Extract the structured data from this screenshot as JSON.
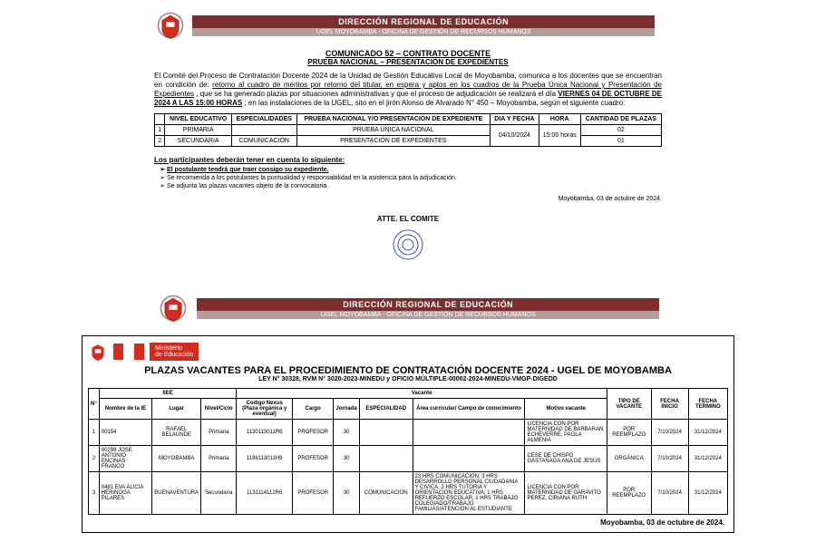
{
  "doc1": {
    "band_dark": "DIRECCIÓN REGIONAL DE EDUCACIÓN",
    "band_light": "UGEL MOYOBAMBA - OFICINA DE GESTIÓN DE RECURSOS HUMANOS",
    "title1": "COMUNICADO 52 – CONTRATO DOCENTE",
    "title2": "PRUEBA NACIONAL – PRESENTACIÓN DE EXPEDIENTES",
    "para": "El Comité del Proceso de Contratación Docente 2024 de la Unidad de Gestión Educativa Local de Moyobamba, comunica a los docentes que se encuentran en condición de: ",
    "para_under1": "retorno al cuadro de méritos por retorno del titular, en espera y aptos en los cuadros de la Prueba Única Nacional y Presentación de Expedientes",
    "para_mid": ", que se ha generado plazas por situaciones administrativas y que el proceso de adjudicación se realizará el día ",
    "para_under2": "VIERNES 04 DE OCTUBRE DE 2024 A LAS 15:00 HORAS",
    "para_end": "; en las instalaciones de la UGEL, sito en el jirón Alonso de Alvarado N° 450 – Moyobamba, según el siguiente cuadro:",
    "sched_headers": {
      "h1": "NIVEL EDUCATIVO",
      "h2": "ESPECIALIDADES",
      "h3": "PRUEBA NACIONAL Y/O PRESENTACIÓN DE EXPEDIENTE",
      "h4": "DIA Y FECHA",
      "h5": "HORA",
      "h6": "CANTIDAD DE PLAZAS"
    },
    "r": {
      "n1": "1",
      "lvl1": "PRIMARIA",
      "esp1": "",
      "pr1": "PRUEBA ÚNICA NACIONAL",
      "fecha": "04/10/2024",
      "hora": "15:00 horas",
      "cant1": "02",
      "n2": "2",
      "lvl2": "SECUNDARIA",
      "esp2": "COMUNICACIÓN",
      "pr2": "PRESENTACIÓN DE EXPEDIENTES",
      "cant2": "01"
    },
    "notes_title": "Los participantes deberán tener en cuenta lo siguiente:",
    "note1": "El postulante tendrá que traer consigo su expediente.",
    "note2": "Se recomienda a los postulantes la puntualidad y responsabilidad en la asistencia para la adjudicación.",
    "note3": "Se adjunta las plazas vacantes objeto de la convocatoria.",
    "place_date": "Moyobamba, 03 de octubre de 2024.",
    "sign": "ATTE. EL COMITE"
  },
  "doc2": {
    "band_dark": "DIRECCIÓN REGIONAL DE EDUCACIÓN",
    "band_light": "UGEL MOYOBAMBA - OFICINA DE GESTIÓN DE RECURSOS HUMANOS",
    "minedu1": "Ministerio",
    "minedu2": "de Educación",
    "title": "PLAZAS VACANTES PARA EL PROCEDIMIENTO DE CONTRATACIÓN DOCENTE 2024 - UGEL DE MOYOBAMBA",
    "sub": "LEY N° 30328, RVM N° 3020-2023-MINEDU y OFICIO MÚLTIPLE-00002-2024-MINEDU-VMGP-DIGEDD",
    "group_iiee": "IIEE",
    "group_vacante": "Vacante",
    "h": {
      "n": "N°",
      "nombre": "Nombre de la IE",
      "lugar": "Lugar",
      "nivel": "Nivel/Ciclo",
      "codigo": "Codigo Nexus (Plaza orgánica y eventual)",
      "cargo": "Cargo",
      "jornada": "Jornada",
      "especialidad": "ESPECIALIDAD",
      "area": "Área curricular/ Campo de conocimiento",
      "motivo": "Motivo vacante",
      "tipo": "TIPO DE VACANTE",
      "inicio": "FECHA INICIO",
      "termino": "FECHA TERMINO"
    },
    "rows": [
      {
        "n": "1",
        "nombre": "00154",
        "lugar": "RAFAEL BELAUNDE",
        "nivel": "Primaria",
        "codigo": "1130113011R6",
        "cargo": "PROFESOR",
        "jor": "30",
        "esp": "",
        "area": "",
        "motivo": "LICENCIA CON POR MATERNIDAD DE BARBARAN ECHEVERRE, PAOLA ALMENIA",
        "tipo": "POR REEMPLAZO",
        "ini": "7/10/2024",
        "fin": "31/12/2024"
      },
      {
        "n": "2",
        "nombre": "00298 JOSE ANTONIO ENCINAS FRANCO",
        "lugar": "MOYOBAMBA",
        "nivel": "Primaria",
        "codigo": "1198113011H9",
        "cargo": "PROFESOR",
        "jor": "30",
        "esp": "",
        "area": "",
        "motivo": "CESE DE CHISPO GASTAÑAGA ANA DE JESÚS",
        "tipo": "ORGÁNICA",
        "ini": "7/10/2024",
        "fin": "31/12/2024"
      },
      {
        "n": "3",
        "nombre": "0481 EVA ALICIA HERINOGA PILARES",
        "lugar": "BUENAVENTURA",
        "nivel": "Secundaria",
        "codigo": "1131114112R6",
        "cargo": "PROFESOR",
        "jor": "30",
        "esp": "COMUNICACION",
        "area": "23 HRS COMUNICACION, 3 HRS DESARROLLO PERSONAL CIUDADANIA Y CIVICA, 2 HRS TUTORIA Y ORIENTACION EDUCATIVA, 1 HRS REFUERZO ESCOLAR, 1 HRS TRABAJO COLEGIADO/TRABAJO FAMILIAS/ATENCION AL ESTUDIANTE",
        "motivo": "LICENCIA CON POR MATERNIDAD DE GARAVITO PEREZ, CIRIANA RUTH",
        "tipo": "POR REEMPLAZO",
        "ini": "7/10/2024",
        "fin": "31/12/2024"
      }
    ],
    "footer": "Moyobamba, 03 de octubre de 2024."
  }
}
